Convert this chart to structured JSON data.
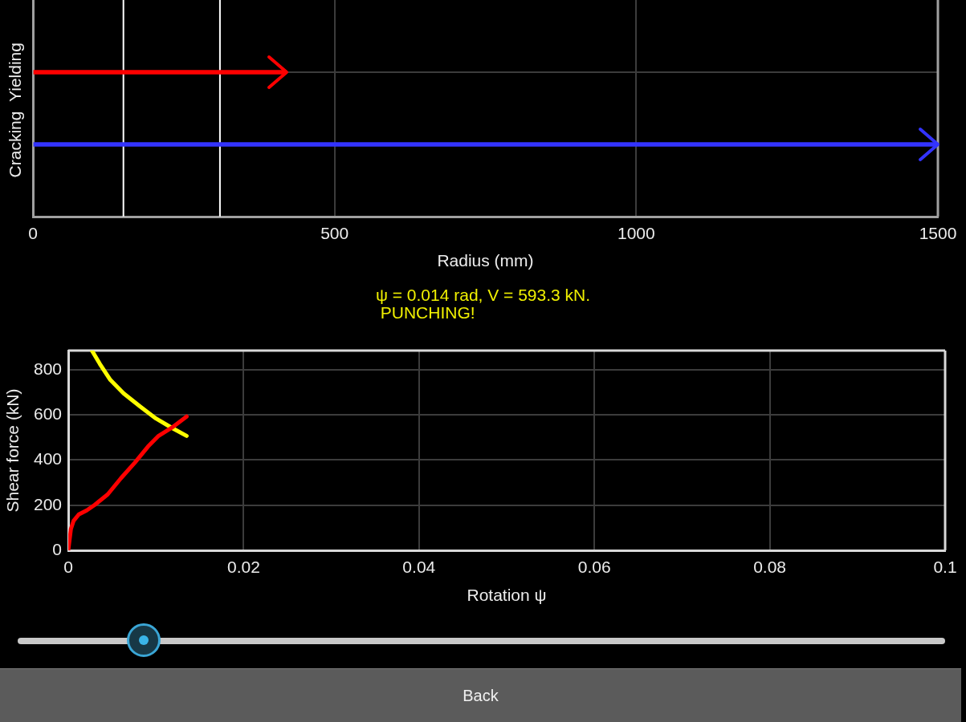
{
  "chart_data": [
    {
      "type": "bar",
      "orientation": "horizontal",
      "categories": [
        "Yielding",
        "Cracking"
      ],
      "values": [
        420,
        1500
      ],
      "colors": [
        "#ff0000",
        "#3333ff"
      ],
      "xlabel": "Radius (mm)",
      "xlim": [
        0,
        1500
      ],
      "xticks": [
        0,
        500,
        1000,
        1500
      ],
      "ref_lines": [
        {
          "axis": "x",
          "value": 150,
          "color": "#ffffff"
        },
        {
          "axis": "x",
          "value": 310,
          "color": "#ffffff"
        }
      ],
      "grid": true
    },
    {
      "type": "line",
      "title": "ψ = 0.014 rad, V = 593.3 kN.",
      "subtitle": "PUNCHING!",
      "xlabel": "Rotation ψ",
      "ylabel": "Shear force (kN)",
      "xlim": [
        0,
        0.1
      ],
      "xticks": [
        0,
        0.02,
        0.04,
        0.06,
        0.08,
        0.1
      ],
      "ylim": [
        0,
        885
      ],
      "yticks": [
        0,
        200,
        400,
        600,
        800
      ],
      "grid": true,
      "annotations": [
        "Back"
      ],
      "series": [
        {
          "color": "#ff0000",
          "x": [
            0,
            0.0003,
            0.0006,
            0.0012,
            0.0021,
            0.003,
            0.0045,
            0.006,
            0.0076,
            0.0091,
            0.0103,
            0.0118,
            0.0135
          ],
          "values": [
            0,
            94,
            130,
            159,
            177,
            201,
            248,
            319,
            389,
            460,
            507,
            543,
            593
          ]
        },
        {
          "color": "#ffff00",
          "x": [
            0.0027,
            0.0036,
            0.0048,
            0.0063,
            0.0082,
            0.01,
            0.0118,
            0.0135
          ],
          "values": [
            885,
            826,
            755,
            696,
            637,
            584,
            543,
            507
          ]
        }
      ]
    }
  ]
}
